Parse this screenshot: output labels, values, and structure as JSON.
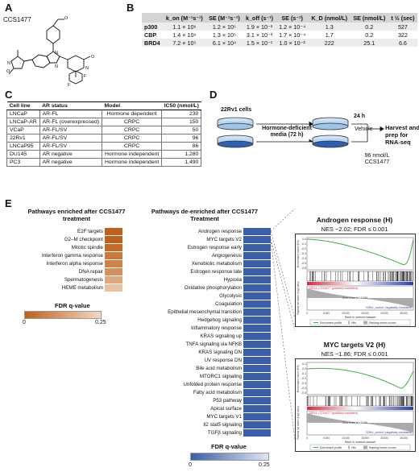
{
  "panels": {
    "a": "A",
    "b": "B",
    "c": "C",
    "d": "D",
    "e": "E"
  },
  "compound": {
    "name": "CCS1477",
    "atoms": [
      "N",
      "N",
      "O",
      "N",
      "O",
      "N",
      "F",
      "F"
    ]
  },
  "binding_table": {
    "headers": [
      "",
      "k_on (M⁻¹s⁻¹)",
      "SE (M⁻¹s⁻¹)",
      "k_off (s⁻¹)",
      "SE (s⁻¹)",
      "K_D (nmol/L)",
      "SE (nmol/L)",
      "t ½ (sec)"
    ],
    "rows": [
      {
        "target": "p300",
        "kon": "1.1 × 10⁶",
        "kon_se": "1.2 × 10⁵",
        "koff": "1.9 × 10⁻³",
        "koff_se": "1.2 × 10⁻⁴",
        "kd": "1.3",
        "kd_se": "0.2",
        "t_half": "527"
      },
      {
        "target": "CBP",
        "kon": "1.4 × 10⁶",
        "kon_se": "1.3 × 10⁵",
        "koff": "3.1 × 10⁻³",
        "koff_se": "1.7 × 10⁻⁴",
        "kd": "1.7",
        "kd_se": "0.2",
        "t_half": "322"
      },
      {
        "target": "BRD4",
        "kon": "7.2 × 10⁵",
        "kon_se": "6.1 × 10⁴",
        "koff": "1.5 × 10⁻¹",
        "koff_se": "1.0 × 10⁻²",
        "kd": "222",
        "kd_se": "25.1",
        "t_half": "6.6"
      }
    ]
  },
  "cell_table": {
    "headers": [
      "Cell line",
      "AR status",
      "Model",
      "IC50 (nmol/L)"
    ],
    "rows": [
      {
        "line": "LNCaP",
        "ar": "AR-FL",
        "model": "Hormone dependent",
        "ic50": "230"
      },
      {
        "line": "LNCaP-AR",
        "ar": "AR-FL (overexpressed)",
        "model": "CRPC",
        "ic50": "150"
      },
      {
        "line": "VCaP",
        "ar": "AR-FL/SV",
        "model": "CRPC",
        "ic50": "50"
      },
      {
        "line": "22Rv1",
        "ar": "AR-FL/SV",
        "model": "CRPC",
        "ic50": "96"
      },
      {
        "line": "LNCaP95",
        "ar": "AR-FL/SV",
        "model": "CRPC",
        "ic50": "86"
      },
      {
        "line": "DU145",
        "ar": "AR negative",
        "model": "Hormone independent",
        "ic50": "1,280"
      },
      {
        "line": "PC3",
        "ar": "AR negative",
        "model": "Hormone independent",
        "ic50": "1,490"
      }
    ]
  },
  "workflow": {
    "cells": "22Rv1 cells",
    "step1": "Hormone-deficient media (72 h)",
    "time": "24 h",
    "vehicle": "Vehicle",
    "dose": "96 nmol/L",
    "drug": "CCS1477",
    "outcome": "Harvest and prep for RNA-seq"
  },
  "enriched": {
    "title": "Pathways enriched after CCS1477 treatment",
    "pathways": [
      "E2F targets",
      "G2–M checkpoint",
      "Mitotic spindle",
      "Interferon gamma response",
      "Interferon alpha response",
      "DNA repair",
      "Spermatogenesis",
      "HEME metabolism"
    ],
    "fdr": [
      0.0,
      0.0,
      0.02,
      0.05,
      0.07,
      0.1,
      0.15,
      0.2
    ],
    "fdr_label": "FDR q-value",
    "fdr_min": "0",
    "fdr_max": "0.25",
    "color_dark": "#c0601a",
    "color_light": "#f3d9c3"
  },
  "deenriched": {
    "title": "Pathways de-enriched after CCS1477 Treatment",
    "pathways": [
      "Androgen response",
      "MYC targets V2",
      "Estrogen response early",
      "Angiogenesis",
      "Xenobiotic metabolism",
      "Estrogen response late",
      "Hypoxia",
      "Oxidative phosphorylation",
      "Glycolysis",
      "Coagulation",
      "Epithelial mesenchymal transition",
      "Hedgehog signaling",
      "Inflammatory response",
      "KRAS signaling up",
      "TNFA signaling via NFKB",
      "KRAS signaling DN",
      "UV response DN",
      "Bile acid metabolism",
      "MTORC1 signaling",
      "Unfolded protein response",
      "Fatty acid metabolism",
      "P53 pathway",
      "Apical surface",
      "MYC targets V1",
      "Il2 stat5 signaling",
      "TGFβ signaling"
    ],
    "fdr_label": "FDR q-value",
    "fdr_min": "0",
    "fdr_max": "0.25",
    "color_dark": "#3a5ea8",
    "color_light": "#dfe6f4"
  },
  "gsea": [
    {
      "title": "Androgen response (H)",
      "stats": "NES −2.02; FDR ≤ 0.001",
      "y_ticks": [
        "0.0",
        "-0.1",
        "-0.2",
        "-0.3",
        "-0.4",
        "-0.5",
        "-0.6"
      ],
      "es_label": "Enrichment score (ES)",
      "rank_label": "Ranked list metric (log2 ratio)",
      "pos_label": "'22Rv1_CCS1477' (positively correlated)",
      "neg_label": "'22Rv1_control' (negatively correlated)",
      "zero_cross": "Zero cross at 13,940",
      "x_ticks": [
        "0",
        "2,500",
        "5,000",
        "7,500",
        "10,000",
        "12,500",
        "15,000",
        "17,500",
        "20,000",
        "22,500",
        "25,000",
        "27,500"
      ],
      "x_label": "Rank in ordered dataset",
      "legend": [
        "Enrichment profile",
        "Hits",
        "Ranking metric scores"
      ]
    },
    {
      "title": "MYC targets V2 (H)",
      "stats": "NES −1.86; FDR ≤ 0.001",
      "y_ticks": [
        "0.1",
        "0.0",
        "-0.1",
        "-0.2",
        "-0.3",
        "-0.4",
        "-0.5"
      ],
      "es_label": "Enrichment score (ES)",
      "rank_label": "Ranked list metric (log2 ratio)",
      "pos_label": "'22Rv1_CCS1477' (positively correlated)",
      "neg_label": "'22Rv1_control' (negatively correlated)",
      "zero_cross": "Zero cross at 13,940",
      "x_ticks": [
        "0",
        "2,500",
        "5,000",
        "7,500",
        "10,000",
        "12,500",
        "15,000",
        "17,500",
        "20,000",
        "22,500",
        "25,000",
        "27,500"
      ],
      "x_label": "Rank in ordered dataset",
      "legend": [
        "Enrichment profile",
        "Hits",
        "Ranking metric scores"
      ]
    }
  ],
  "colors": {
    "es_line": "#3cb43c",
    "pos": "#d7263d",
    "neg": "#2d3fa8",
    "table_header": "#d4d4d4"
  }
}
